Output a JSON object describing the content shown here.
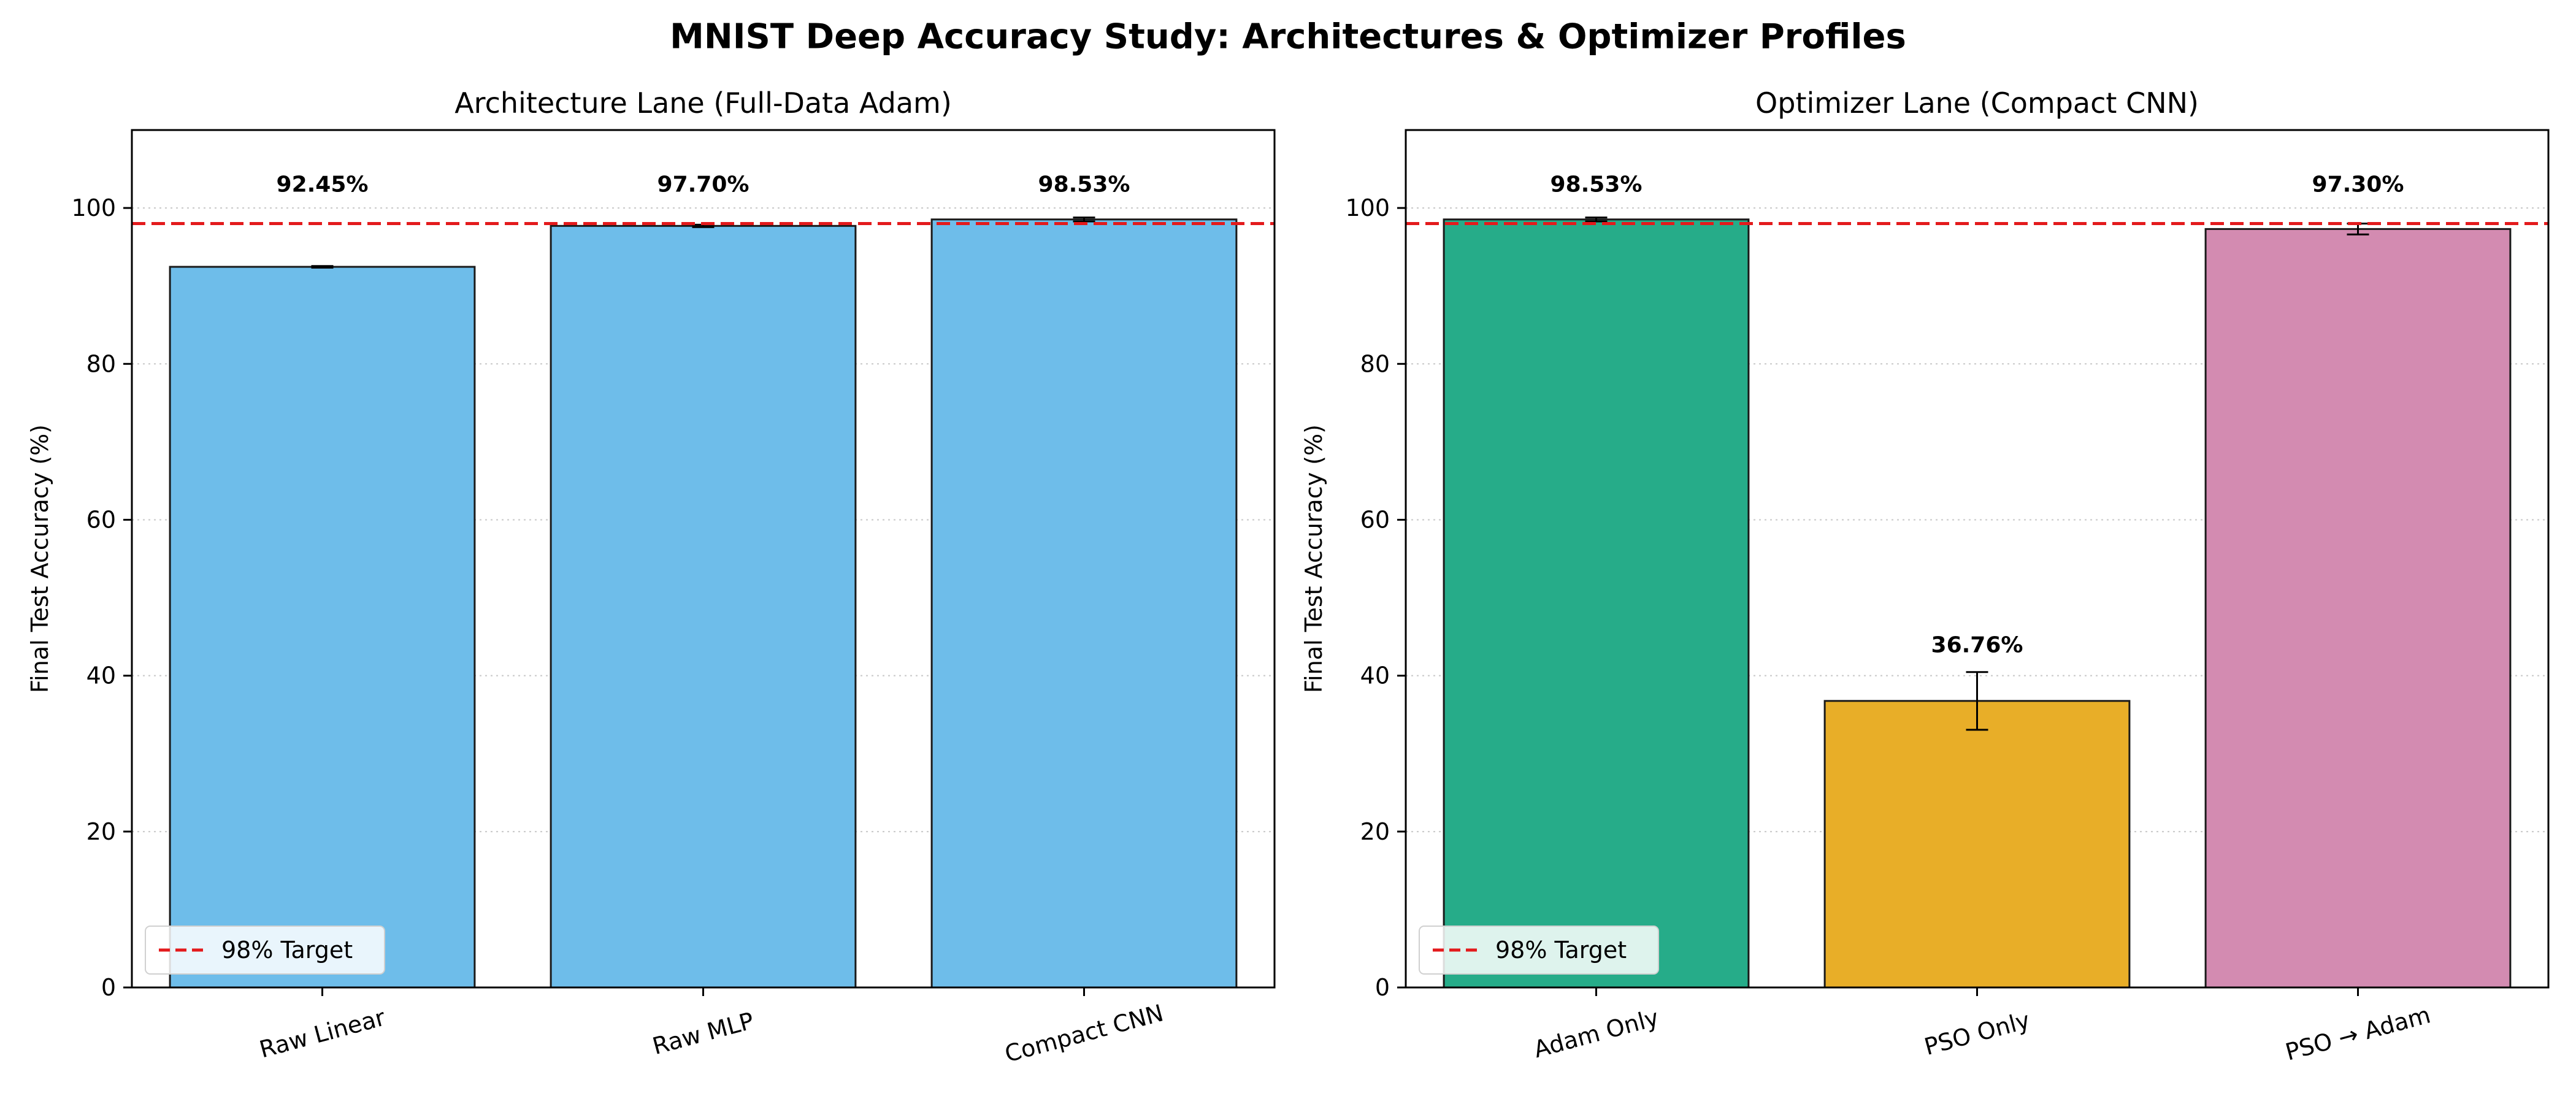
{
  "figure_title": "MNIST Deep Accuracy Study: Architectures & Optimizer Profiles",
  "chart_data": [
    {
      "type": "bar",
      "title": "Architecture Lane (Full-Data Adam)",
      "xlabel": "",
      "ylabel": "Final Test Accuracy (%)",
      "ylim": [
        0,
        110
      ],
      "yticks": [
        0,
        20,
        40,
        60,
        80,
        100
      ],
      "grid": "y-dotted",
      "categories": [
        "Raw Linear",
        "Raw MLP",
        "Compact CNN"
      ],
      "values": [
        92.45,
        97.7,
        98.53
      ],
      "errors": [
        0.1,
        0.15,
        0.25
      ],
      "value_labels": [
        "92.45%",
        "97.70%",
        "98.53%"
      ],
      "bar_colors": [
        "#6EBDEA",
        "#6EBDEA",
        "#6EBDEA"
      ],
      "target_line": {
        "value": 98,
        "label": "98% Target",
        "color": "#E31A1C"
      },
      "legend_position": "lower-left"
    },
    {
      "type": "bar",
      "title": "Optimizer Lane (Compact CNN)",
      "xlabel": "",
      "ylabel": "Final Test Accuracy (%)",
      "ylim": [
        0,
        110
      ],
      "yticks": [
        0,
        20,
        40,
        60,
        80,
        100
      ],
      "grid": "y-dotted",
      "categories": [
        "Adam Only",
        "PSO Only",
        "PSO → Adam"
      ],
      "values": [
        98.53,
        36.76,
        97.3
      ],
      "errors": [
        0.25,
        3.7,
        0.7
      ],
      "value_labels": [
        "98.53%",
        "36.76%",
        "97.30%"
      ],
      "bar_colors": [
        "#26AC89",
        "#E8AE28",
        "#D38BB1"
      ],
      "target_line": {
        "value": 98,
        "label": "98% Target",
        "color": "#E31A1C"
      },
      "legend_position": "lower-left"
    }
  ]
}
